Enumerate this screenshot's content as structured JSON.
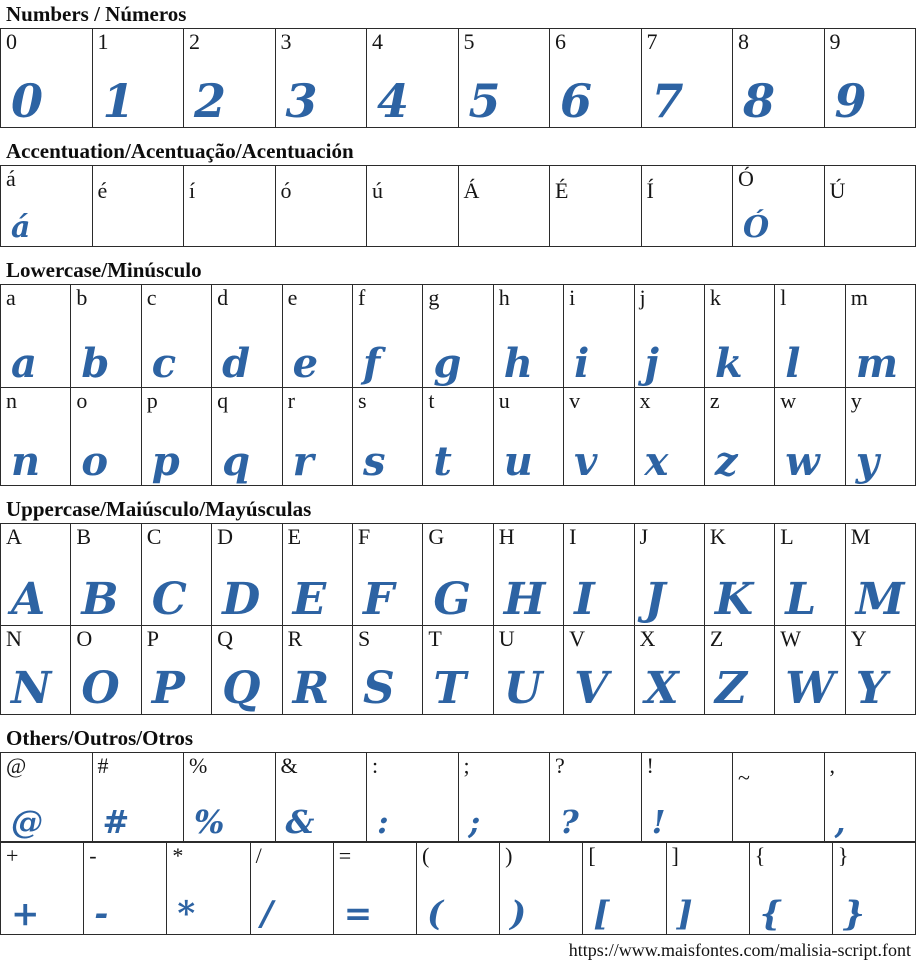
{
  "page": {
    "glyph_color": "#2d63a3",
    "border_color": "#2b2b2b",
    "footer_url": "https://www.maisfontes.com/malisia-script.font"
  },
  "sections": [
    {
      "id": "numbers",
      "title": "Numbers / Números",
      "rows": [
        [
          {
            "label": "0",
            "glyph": "0"
          },
          {
            "label": "1",
            "glyph": "1"
          },
          {
            "label": "2",
            "glyph": "2"
          },
          {
            "label": "3",
            "glyph": "3"
          },
          {
            "label": "4",
            "glyph": "4"
          },
          {
            "label": "5",
            "glyph": "5"
          },
          {
            "label": "6",
            "glyph": "6"
          },
          {
            "label": "7",
            "glyph": "7"
          },
          {
            "label": "8",
            "glyph": "8"
          },
          {
            "label": "9",
            "glyph": "9"
          }
        ]
      ]
    },
    {
      "id": "accentuation",
      "title": "Accentuation/Acentuação/Acentuación",
      "rows": [
        [
          {
            "label": "á",
            "glyph": "á"
          },
          {
            "label": "é"
          },
          {
            "label": "í"
          },
          {
            "label": "ó"
          },
          {
            "label": "ú"
          },
          {
            "label": "Á"
          },
          {
            "label": "É"
          },
          {
            "label": "Í"
          },
          {
            "label": "Ó",
            "glyph": "Ó"
          },
          {
            "label": "Ú"
          }
        ]
      ]
    },
    {
      "id": "lowercase",
      "title": "Lowercase/Minúsculo",
      "rows": [
        [
          {
            "label": "a",
            "glyph": "a"
          },
          {
            "label": "b",
            "glyph": "b"
          },
          {
            "label": "c",
            "glyph": "c"
          },
          {
            "label": "d",
            "glyph": "d"
          },
          {
            "label": "e",
            "glyph": "e"
          },
          {
            "label": "f",
            "glyph": "f"
          },
          {
            "label": "g",
            "glyph": "g"
          },
          {
            "label": "h",
            "glyph": "h"
          },
          {
            "label": "i",
            "glyph": "i"
          },
          {
            "label": "j",
            "glyph": "j"
          },
          {
            "label": "k",
            "glyph": "k"
          },
          {
            "label": "l",
            "glyph": "l"
          },
          {
            "label": "m",
            "glyph": "m"
          }
        ],
        [
          {
            "label": "n",
            "glyph": "n"
          },
          {
            "label": "o",
            "glyph": "o"
          },
          {
            "label": "p",
            "glyph": "p"
          },
          {
            "label": "q",
            "glyph": "q"
          },
          {
            "label": "r",
            "glyph": "r"
          },
          {
            "label": "s",
            "glyph": "s"
          },
          {
            "label": "t",
            "glyph": "t"
          },
          {
            "label": "u",
            "glyph": "u"
          },
          {
            "label": "v",
            "glyph": "v"
          },
          {
            "label": "x",
            "glyph": "x"
          },
          {
            "label": "z",
            "glyph": "z"
          },
          {
            "label": "w",
            "glyph": "w"
          },
          {
            "label": "y",
            "glyph": "y"
          }
        ]
      ]
    },
    {
      "id": "uppercase",
      "title": "Uppercase/Maiúsculo/Mayúsculas",
      "rows": [
        [
          {
            "label": "A",
            "glyph": "A"
          },
          {
            "label": "B",
            "glyph": "B"
          },
          {
            "label": "C",
            "glyph": "C"
          },
          {
            "label": "D",
            "glyph": "D"
          },
          {
            "label": "E",
            "glyph": "E"
          },
          {
            "label": "F",
            "glyph": "F"
          },
          {
            "label": "G",
            "glyph": "G"
          },
          {
            "label": "H",
            "glyph": "H"
          },
          {
            "label": "I",
            "glyph": "I"
          },
          {
            "label": "J",
            "glyph": "J"
          },
          {
            "label": "K",
            "glyph": "K"
          },
          {
            "label": "L",
            "glyph": "L"
          },
          {
            "label": "M",
            "glyph": "M"
          }
        ],
        [
          {
            "label": "N",
            "glyph": "N"
          },
          {
            "label": "O",
            "glyph": "O"
          },
          {
            "label": "P",
            "glyph": "P"
          },
          {
            "label": "Q",
            "glyph": "Q"
          },
          {
            "label": "R",
            "glyph": "R"
          },
          {
            "label": "S",
            "glyph": "S"
          },
          {
            "label": "T",
            "glyph": "T"
          },
          {
            "label": "U",
            "glyph": "U"
          },
          {
            "label": "V",
            "glyph": "V"
          },
          {
            "label": "X",
            "glyph": "X"
          },
          {
            "label": "Z",
            "glyph": "Z"
          },
          {
            "label": "W",
            "glyph": "W"
          },
          {
            "label": "Y",
            "glyph": "Y"
          }
        ]
      ]
    },
    {
      "id": "others",
      "title": "Others/Outros/Otros",
      "rows": [
        [
          {
            "label": "@",
            "glyph": "@"
          },
          {
            "label": "#",
            "glyph": "#"
          },
          {
            "label": "%",
            "glyph": "%"
          },
          {
            "label": "&",
            "glyph": "&"
          },
          {
            "label": ":",
            "glyph": ":"
          },
          {
            "label": ";",
            "glyph": ";"
          },
          {
            "label": "?",
            "glyph": "?"
          },
          {
            "label": "!",
            "glyph": "!"
          },
          {
            "label": "~"
          },
          {
            "label": ",",
            "glyph": ","
          }
        ],
        [
          {
            "label": "+",
            "glyph": "+"
          },
          {
            "label": "-",
            "glyph": "-"
          },
          {
            "label": "*",
            "glyph": "*"
          },
          {
            "label": "/",
            "glyph": "/"
          },
          {
            "label": "=",
            "glyph": "="
          },
          {
            "label": "(",
            "glyph": "("
          },
          {
            "label": ")",
            "glyph": ")"
          },
          {
            "label": "[",
            "glyph": "["
          },
          {
            "label": "]",
            "glyph": "]"
          },
          {
            "label": "{",
            "glyph": "{"
          },
          {
            "label": "}",
            "glyph": "}"
          }
        ]
      ]
    }
  ]
}
